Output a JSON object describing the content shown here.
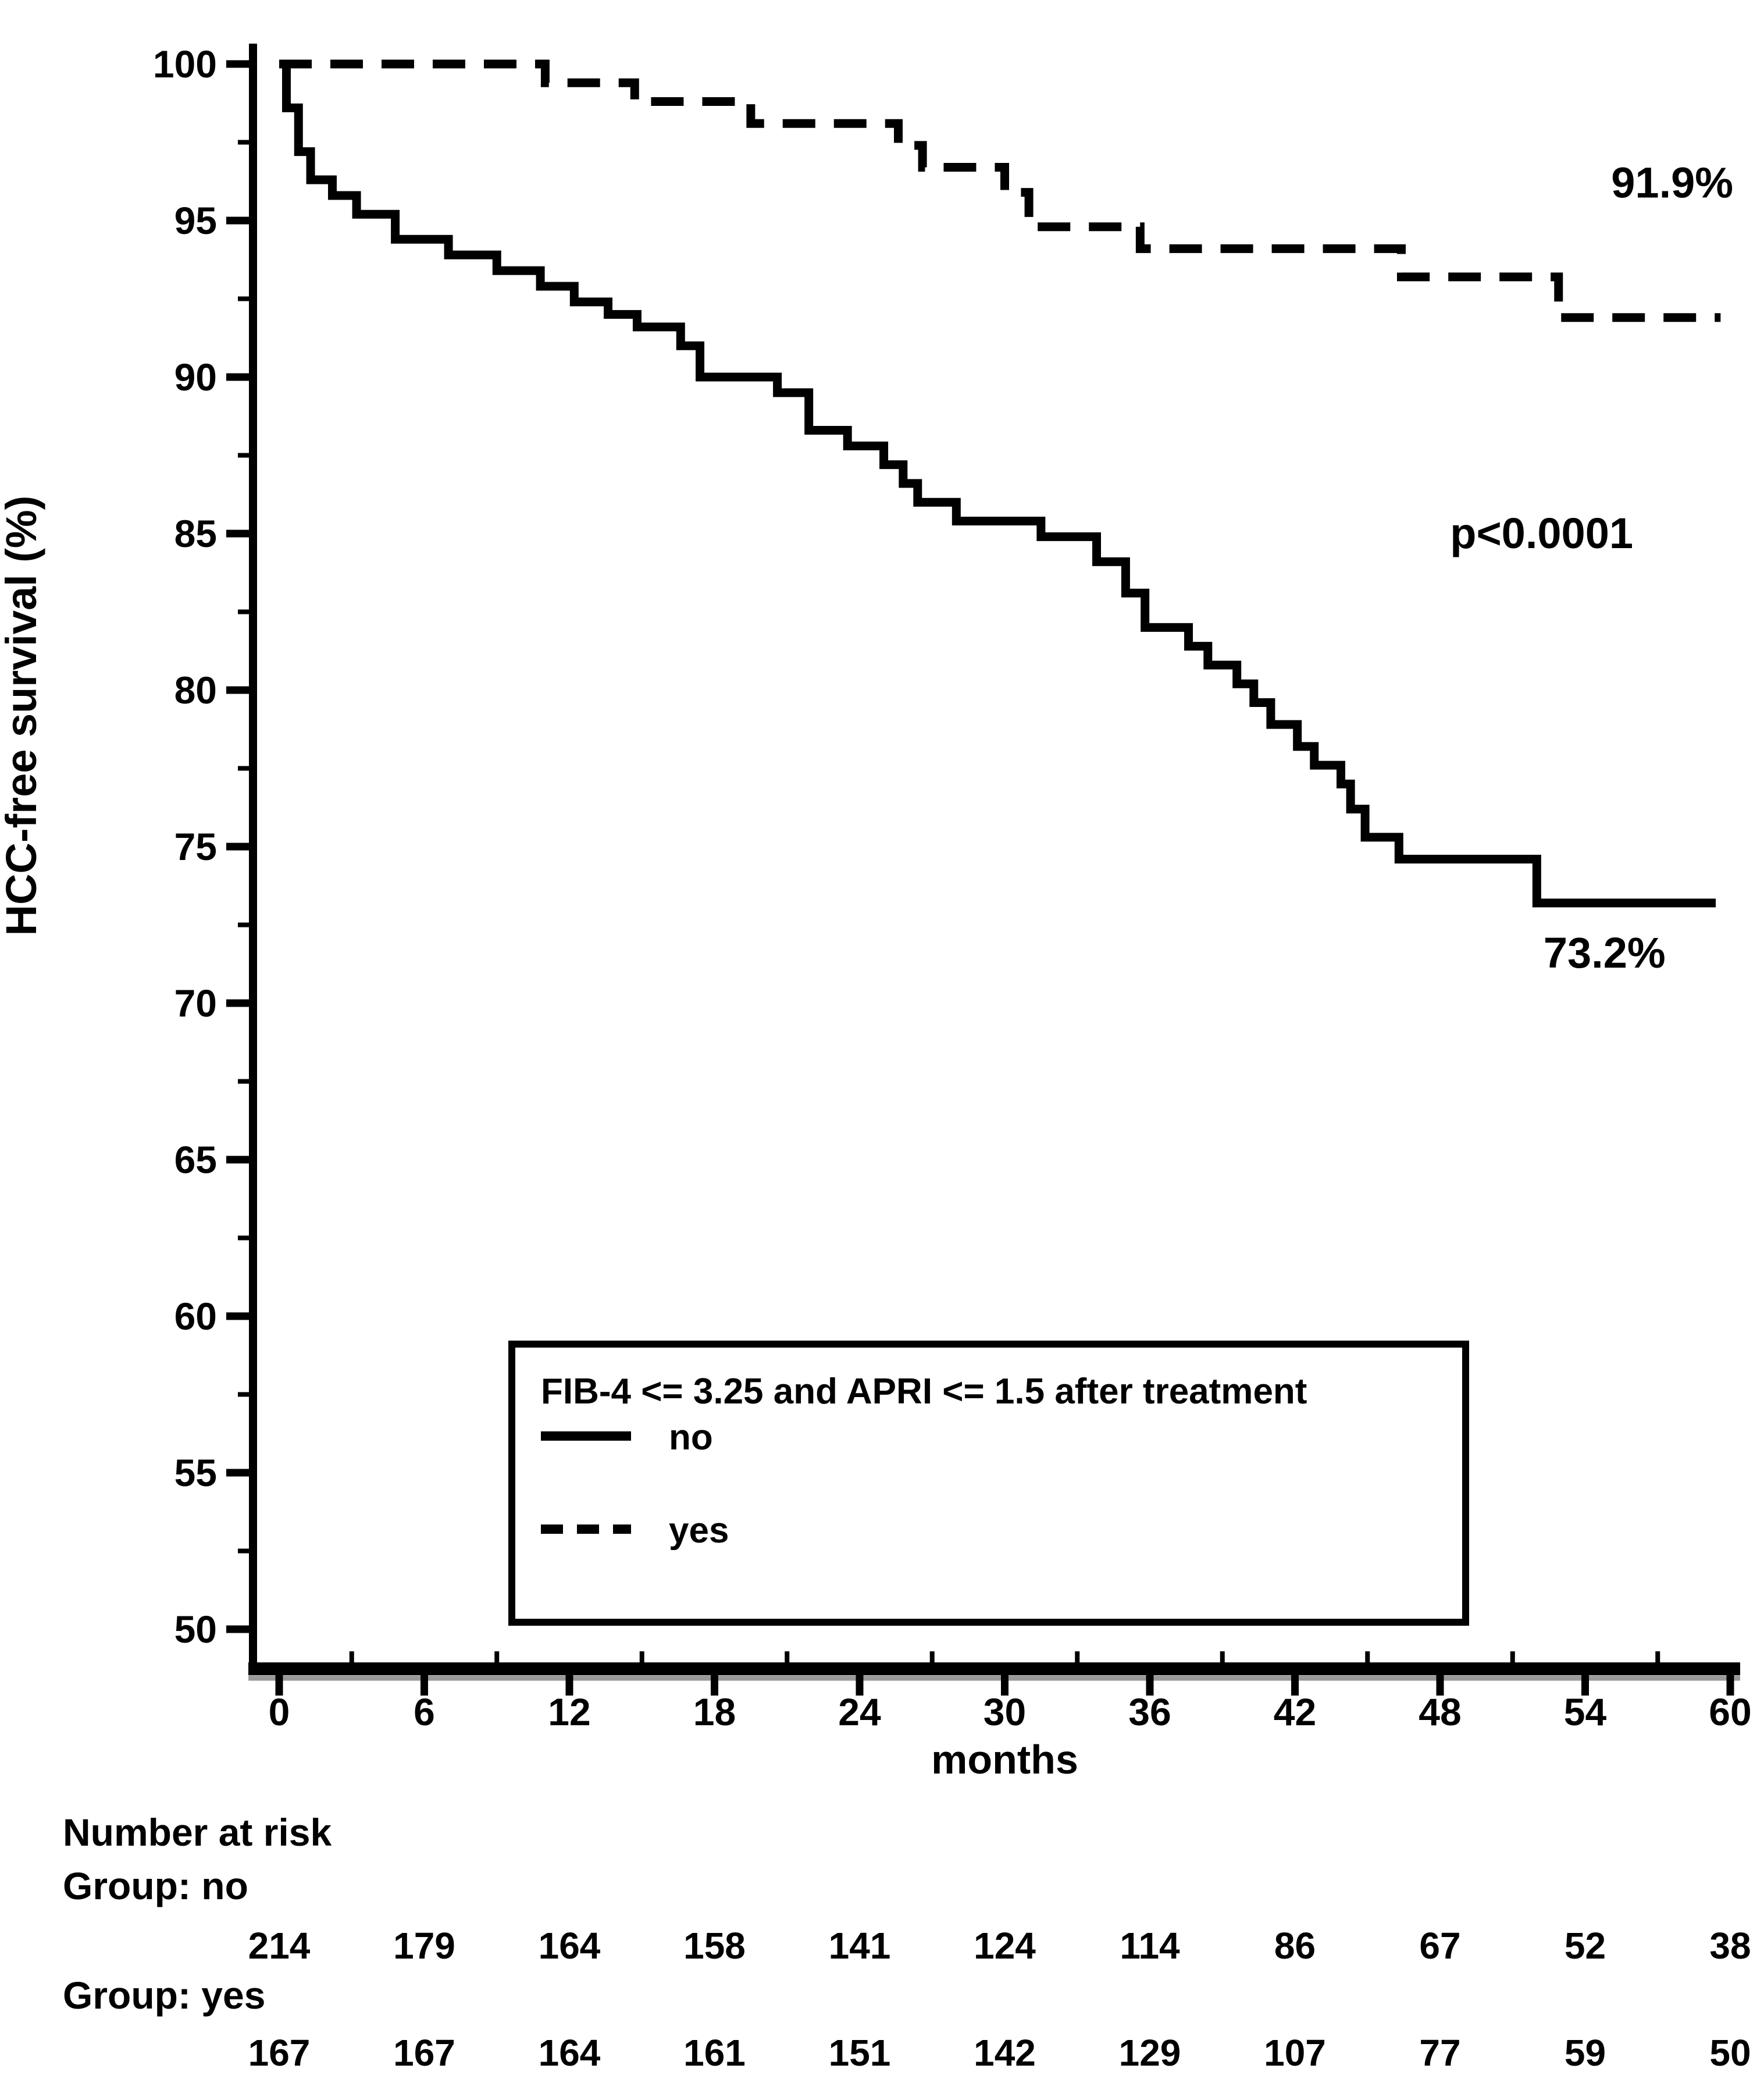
{
  "page": {
    "background": "#ffffff",
    "text_color": "#000000"
  },
  "chart_data": {
    "type": "line",
    "subtype": "kaplan-meier-step",
    "title": "",
    "xlabel": "months",
    "ylabel": "HCC-free survival (%)",
    "xlim": [
      0,
      60
    ],
    "ylim": [
      50,
      100
    ],
    "x_ticks": [
      0,
      6,
      12,
      18,
      24,
      30,
      36,
      42,
      48,
      54,
      60
    ],
    "y_ticks": [
      50,
      55,
      60,
      65,
      70,
      75,
      80,
      85,
      90,
      95,
      100
    ],
    "x_minor_tick_step": 3,
    "y_minor_tick_step": 2.5,
    "grid": false,
    "line_color": "#000000",
    "series": [
      {
        "name": "no",
        "line_style": "solid",
        "end_x": 59.4,
        "points": [
          [
            0,
            100
          ],
          [
            0.3,
            98.6
          ],
          [
            0.8,
            97.2
          ],
          [
            1.3,
            96.3
          ],
          [
            2.2,
            95.8
          ],
          [
            3.2,
            95.2
          ],
          [
            4.8,
            94.4
          ],
          [
            7.0,
            93.9
          ],
          [
            9.0,
            93.4
          ],
          [
            10.8,
            92.9
          ],
          [
            12.2,
            92.4
          ],
          [
            13.6,
            92.0
          ],
          [
            14.8,
            91.6
          ],
          [
            16.6,
            91.0
          ],
          [
            17.4,
            90.0
          ],
          [
            20.6,
            89.5
          ],
          [
            21.9,
            88.3
          ],
          [
            23.5,
            87.8
          ],
          [
            25.0,
            87.2
          ],
          [
            25.8,
            86.6
          ],
          [
            26.4,
            86.0
          ],
          [
            28.0,
            85.4
          ],
          [
            31.5,
            84.9
          ],
          [
            33.8,
            84.1
          ],
          [
            35.0,
            83.1
          ],
          [
            35.8,
            82.0
          ],
          [
            37.6,
            81.4
          ],
          [
            38.4,
            80.8
          ],
          [
            39.6,
            80.2
          ],
          [
            40.3,
            79.6
          ],
          [
            41.0,
            78.9
          ],
          [
            42.1,
            78.2
          ],
          [
            42.8,
            77.6
          ],
          [
            43.9,
            77.0
          ],
          [
            44.3,
            76.2
          ],
          [
            44.9,
            75.3
          ],
          [
            46.3,
            74.6
          ],
          [
            52.0,
            73.2
          ]
        ]
      },
      {
        "name": "yes",
        "line_style": "dashed",
        "end_x": 59.6,
        "points": [
          [
            0,
            100
          ],
          [
            11.0,
            99.4
          ],
          [
            14.7,
            98.8
          ],
          [
            19.5,
            98.1
          ],
          [
            25.6,
            97.4
          ],
          [
            26.6,
            96.7
          ],
          [
            30.0,
            95.9
          ],
          [
            31.0,
            94.8
          ],
          [
            35.6,
            94.1
          ],
          [
            46.4,
            93.2
          ],
          [
            52.9,
            91.9
          ]
        ]
      }
    ],
    "annotations": [
      {
        "id": "yes-endpoint",
        "text": "91.9%",
        "x": 57.6,
        "y": 96.2
      },
      {
        "id": "p-value",
        "text": "p<0.0001",
        "x": 52.2,
        "y": 85.0
      },
      {
        "id": "no-endpoint",
        "text": "73.2%",
        "x": 54.8,
        "y": 71.6
      }
    ],
    "legend": {
      "position": "inside-bottom-left-box",
      "title": "FIB-4 <= 3.25 and APRI <= 1.5 after treatment",
      "entries": [
        {
          "label": "no",
          "line_style": "solid"
        },
        {
          "label": "yes",
          "line_style": "dashed"
        }
      ]
    },
    "risk_table": {
      "title": "Number at risk",
      "time_points": [
        0,
        6,
        12,
        18,
        24,
        30,
        36,
        42,
        48,
        54,
        60
      ],
      "groups": [
        {
          "label": "Group: no",
          "counts": [
            214,
            179,
            164,
            158,
            141,
            124,
            114,
            86,
            67,
            52,
            38
          ]
        },
        {
          "label": "Group: yes",
          "counts": [
            167,
            167,
            164,
            161,
            151,
            142,
            129,
            107,
            77,
            59,
            50
          ]
        }
      ]
    }
  }
}
